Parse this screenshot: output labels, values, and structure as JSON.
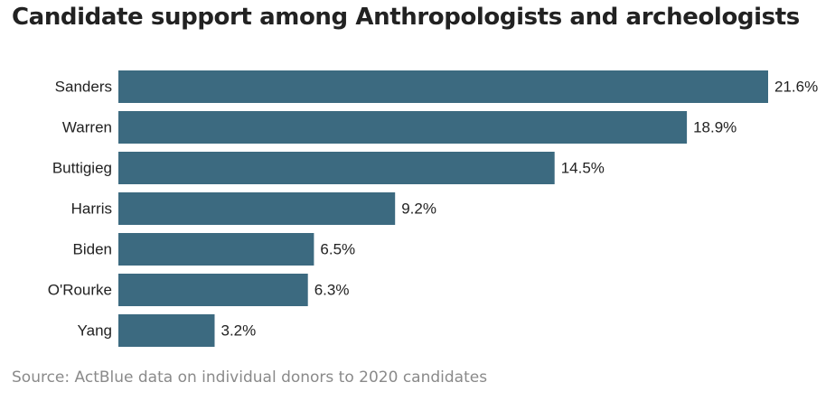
{
  "chart_data": {
    "type": "bar",
    "orientation": "horizontal",
    "title": "Candidate support among Anthropologists and archeologists",
    "source": "Source: ActBlue data on individual donors to 2020 candidates",
    "categories": [
      "Sanders",
      "Warren",
      "Buttigieg",
      "Harris",
      "Biden",
      "O'Rourke",
      "Yang"
    ],
    "values": [
      21.6,
      18.9,
      14.5,
      9.2,
      6.5,
      6.3,
      3.2
    ],
    "value_labels": [
      "21.6%",
      "18.9%",
      "14.5%",
      "9.2%",
      "6.5%",
      "6.3%",
      "3.2%"
    ],
    "unit": "%",
    "bar_color": "#3c6a80",
    "xlim": [
      0,
      21.6
    ],
    "grid": false,
    "legend": "none"
  }
}
